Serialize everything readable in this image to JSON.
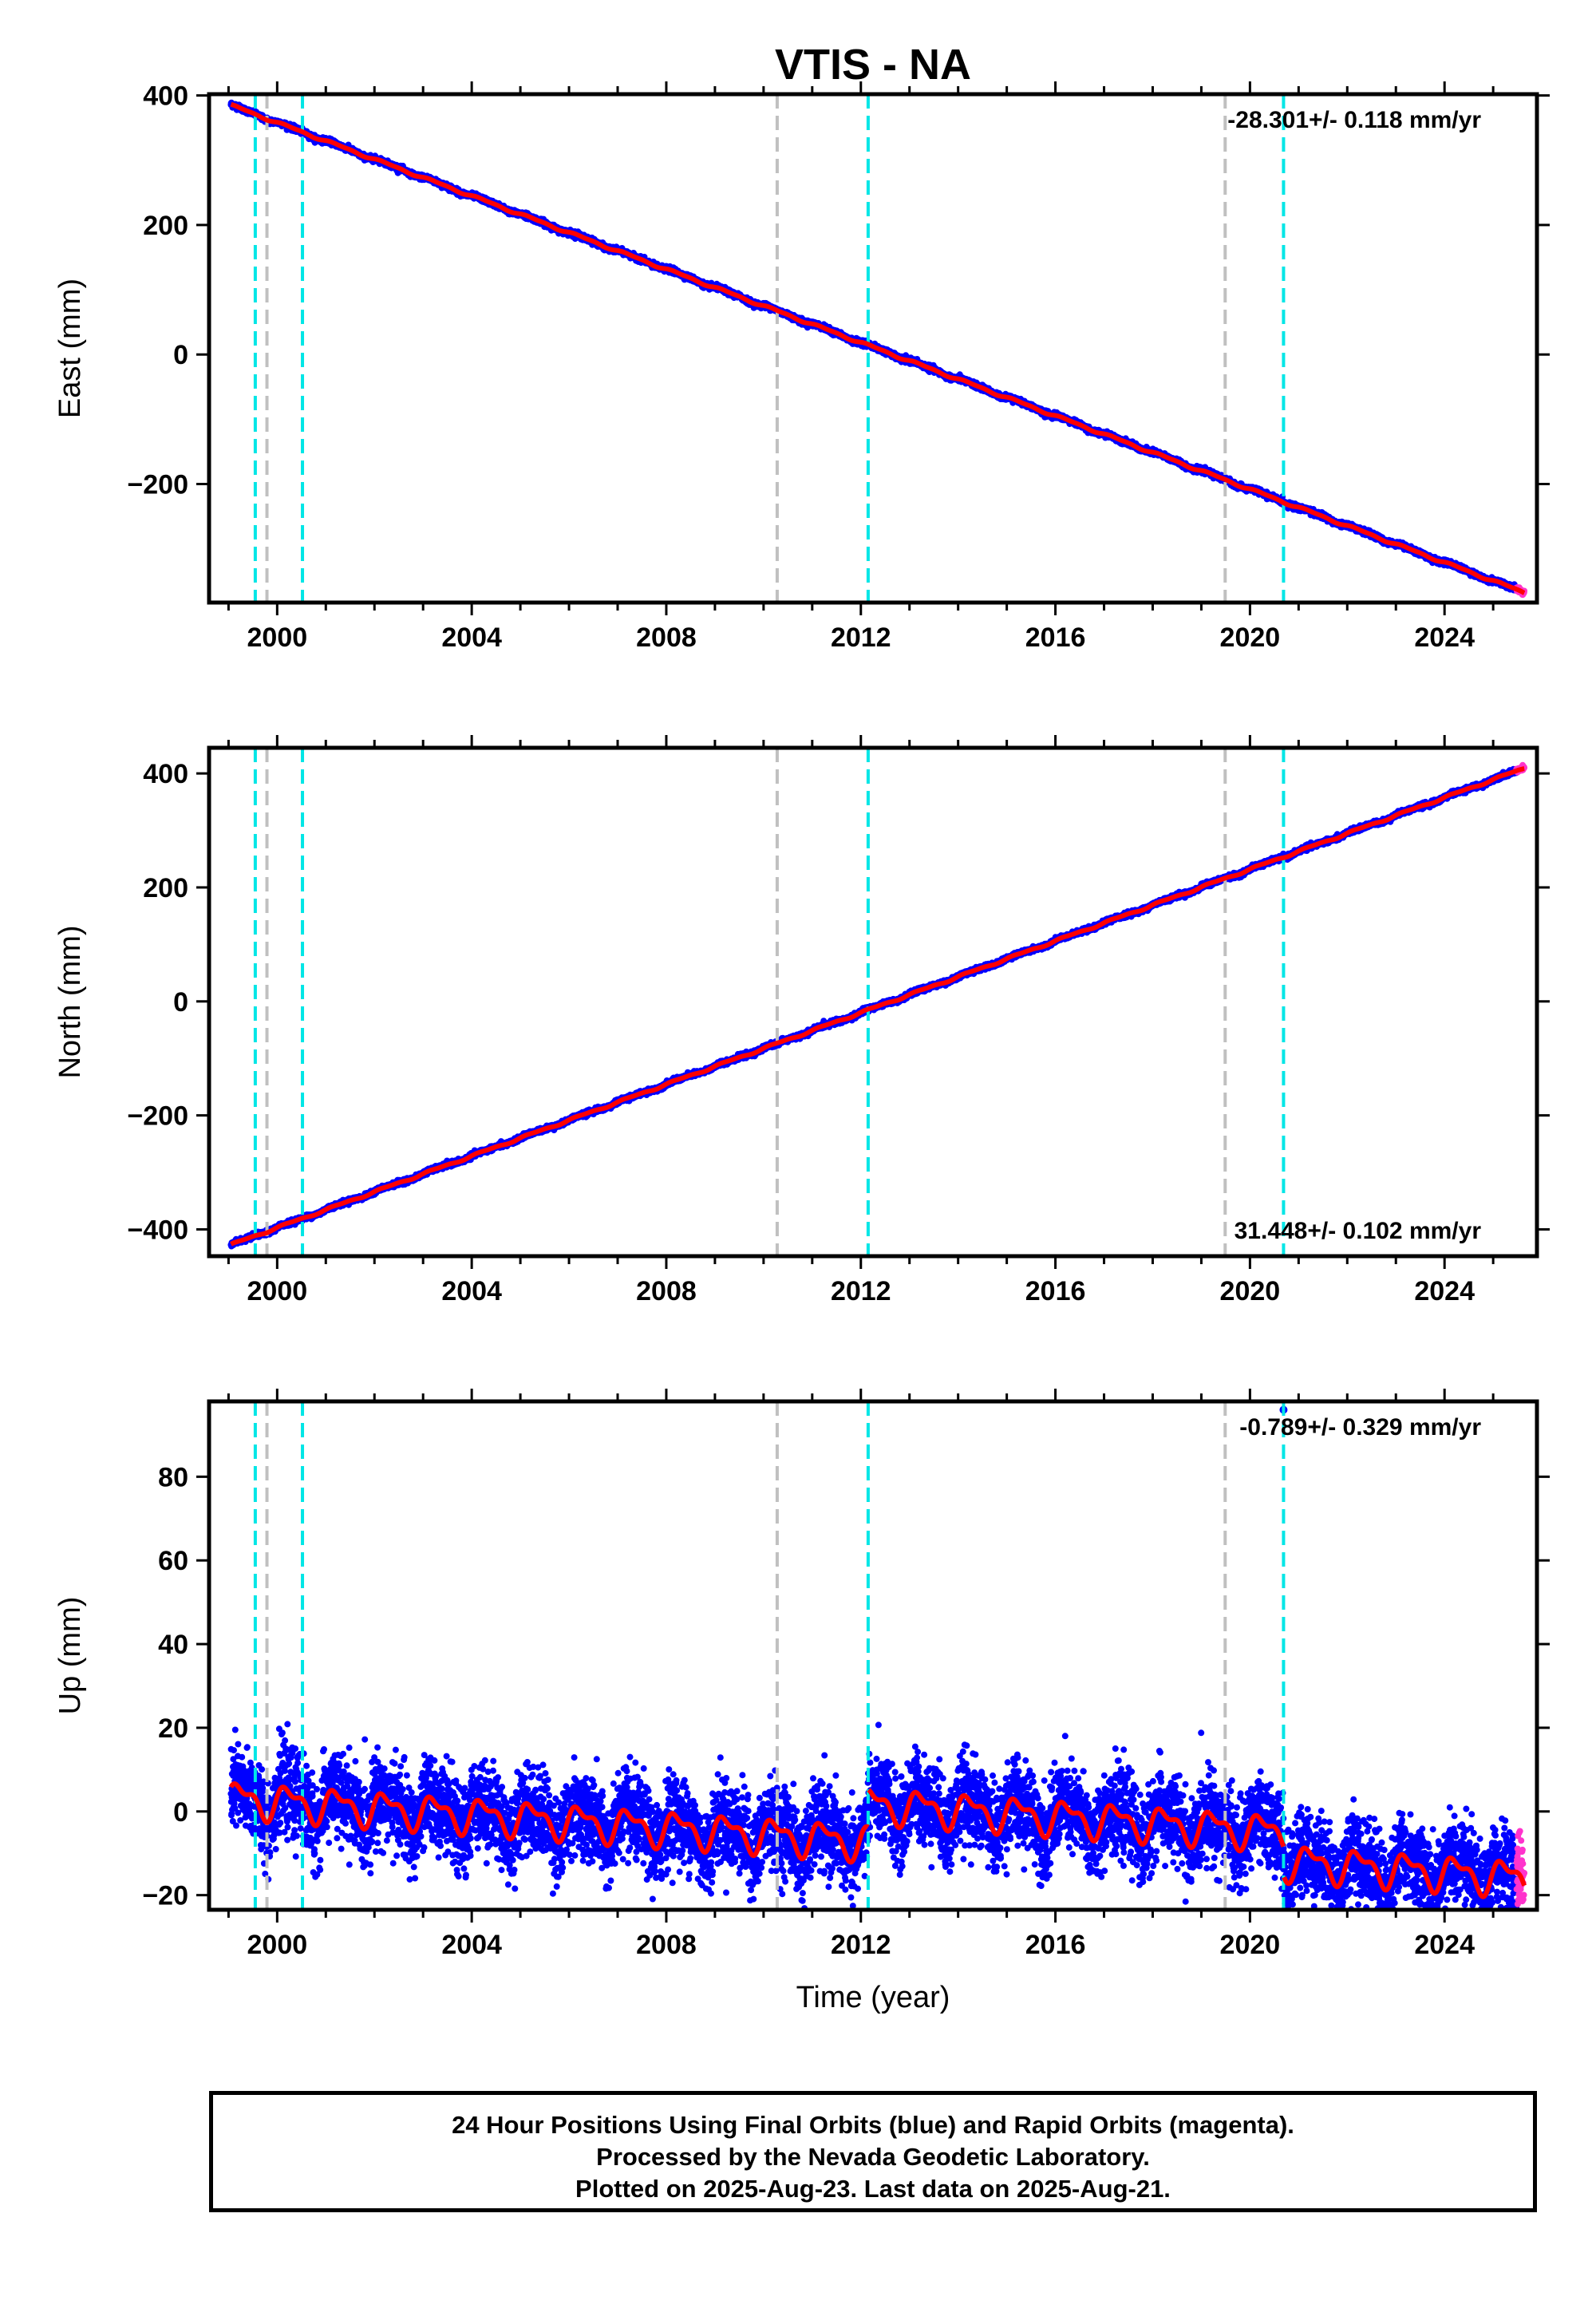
{
  "title": "VTIS - NA",
  "chart_data": [
    {
      "type": "scatter",
      "ylabel": "East (mm)",
      "xlabel": "",
      "xlim": [
        1998.6,
        2025.9
      ],
      "ylim": [
        -383,
        402
      ],
      "xticks": [
        2000,
        2004,
        2008,
        2012,
        2016,
        2020,
        2024
      ],
      "yticks": [
        -200,
        0,
        200,
        400
      ],
      "rate_label": "-28.301+/- 0.118 mm/yr",
      "rate_position": "top-right",
      "start_value": 385,
      "trend": -28.301,
      "steps": [],
      "seasonal_amplitude": 1.5,
      "noise": 2.0,
      "final_color": "#0000ff",
      "rapid_color": "#ff33cc",
      "model_color": "#ff0000",
      "data_start": 1999.05,
      "rapid_start": 2025.48,
      "data_end": 2025.64,
      "gaps": []
    },
    {
      "type": "scatter",
      "ylabel": "North (mm)",
      "xlabel": "",
      "xlim": [
        1998.6,
        2025.9
      ],
      "ylim": [
        -447,
        445
      ],
      "xticks": [
        2000,
        2004,
        2008,
        2012,
        2016,
        2020,
        2024
      ],
      "yticks": [
        -400,
        -200,
        0,
        200,
        400
      ],
      "rate_label": "31.448+/- 0.102 mm/yr",
      "rate_position": "bottom-right",
      "start_value": -427,
      "trend": 31.448,
      "steps": [],
      "seasonal_amplitude": 1.5,
      "noise": 2.0,
      "final_color": "#0000ff",
      "rapid_color": "#ff33cc",
      "model_color": "#ff0000",
      "data_start": 1999.05,
      "rapid_start": 2025.48,
      "data_end": 2025.64,
      "gaps": []
    },
    {
      "type": "scatter",
      "ylabel": "Up (mm)",
      "xlabel": "Time (year)",
      "xlim": [
        1998.6,
        2025.9
      ],
      "ylim": [
        -23.5,
        98
      ],
      "xticks": [
        2000,
        2004,
        2008,
        2012,
        2016,
        2020,
        2024
      ],
      "yticks": [
        -20,
        0,
        20,
        40,
        60,
        80
      ],
      "rate_label": "-0.789+/- 0.329 mm/yr",
      "rate_position": "top-right",
      "start_value": 3,
      "trend": -0.789,
      "steps": [
        [
          2012.15,
          9
        ],
        [
          2020.69,
          -7
        ]
      ],
      "seasonal_amplitude": 3.5,
      "noise": 5.0,
      "final_color": "#0000ff",
      "rapid_color": "#ff33cc",
      "model_color": "#ff0000",
      "data_start": 1999.05,
      "rapid_start": 2025.48,
      "data_end": 2025.64,
      "gaps": [],
      "outliers": [
        [
          2020.69,
          96
        ]
      ]
    }
  ],
  "equipment_changes": [
    1999.79,
    2010.28,
    2019.49
  ],
  "equipment_color": "#c0c0c0",
  "earthquakes": [
    1999.55,
    2000.52,
    2012.15,
    2020.69
  ],
  "earthquake_color": "#00e6e6",
  "footer": {
    "line1": "24 Hour Positions Using Final Orbits (blue) and Rapid Orbits (magenta).",
    "line2": "Processed by the Nevada Geodetic Laboratory.",
    "line3": "Plotted on 2025-Aug-23. Last data on 2025-Aug-21."
  }
}
